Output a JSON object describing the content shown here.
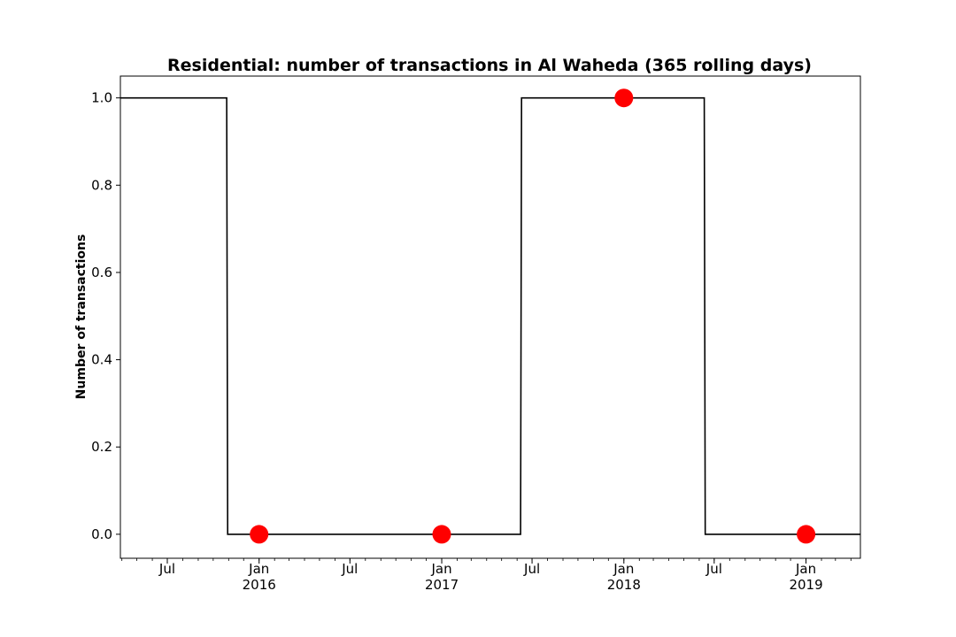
{
  "chart_data": {
    "type": "line",
    "title": "Residential: number of transactions in Al Waheda (365 rolling days)",
    "xlabel": "",
    "ylabel": "Number of transactions",
    "xlim": [
      "2015-03-29",
      "2019-04-20"
    ],
    "ylim": [
      -0.055,
      1.05
    ],
    "grid": false,
    "series": [
      {
        "style": "step",
        "color": "#000000",
        "x": [
          "2015-03-29",
          "2015-10-28",
          "2015-10-30",
          "2017-06-08",
          "2017-06-10",
          "2018-06-11",
          "2018-06-13",
          "2019-04-20"
        ],
        "y": [
          1,
          1,
          0,
          0,
          1,
          1,
          0,
          0
        ]
      },
      {
        "style": "markers",
        "color": "#ff0000",
        "x": [
          "2016-01-01",
          "2017-01-01",
          "2018-01-01",
          "2019-01-01"
        ],
        "y": [
          0,
          0,
          1,
          0
        ]
      }
    ],
    "yticks": [
      {
        "value": 0.0,
        "label": "0.0"
      },
      {
        "value": 0.2,
        "label": "0.2"
      },
      {
        "value": 0.4,
        "label": "0.4"
      },
      {
        "value": 0.6,
        "label": "0.6"
      },
      {
        "value": 0.8,
        "label": "0.8"
      },
      {
        "value": 1.0,
        "label": "1.0"
      }
    ],
    "xticks": [
      {
        "date": "2015-07-01",
        "label": "Jul",
        "sublabel": ""
      },
      {
        "date": "2016-01-01",
        "label": "Jan",
        "sublabel": "2016"
      },
      {
        "date": "2016-07-01",
        "label": "Jul",
        "sublabel": ""
      },
      {
        "date": "2017-01-01",
        "label": "Jan",
        "sublabel": "2017"
      },
      {
        "date": "2017-07-01",
        "label": "Jul",
        "sublabel": ""
      },
      {
        "date": "2018-01-01",
        "label": "Jan",
        "sublabel": "2018"
      },
      {
        "date": "2018-07-01",
        "label": "Jul",
        "sublabel": ""
      },
      {
        "date": "2019-01-01",
        "label": "Jan",
        "sublabel": "2019"
      }
    ],
    "minor_ticks": "monthly"
  }
}
